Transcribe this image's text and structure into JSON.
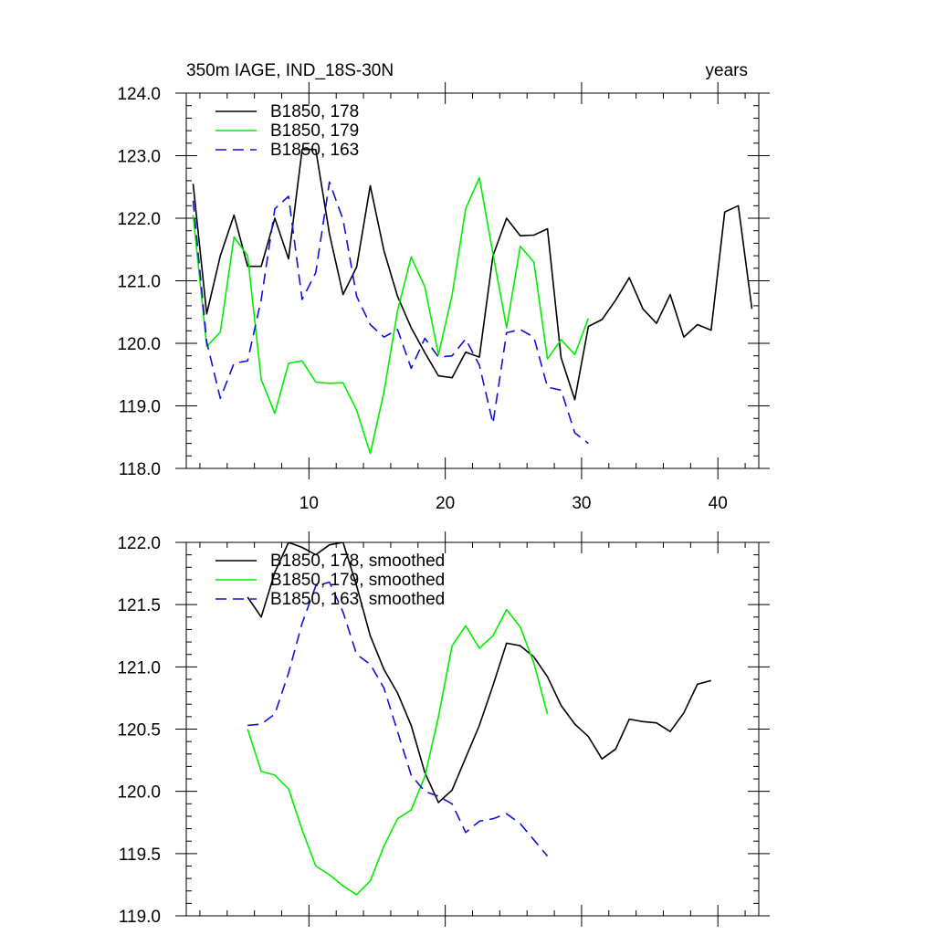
{
  "chart_data": [
    {
      "type": "line",
      "title": "350m IAGE, IND_18S-30N",
      "unit_label": "years",
      "xlim": [
        1,
        43
      ],
      "ylim": [
        118.0,
        124.0
      ],
      "x_ticks": [
        10,
        20,
        30,
        40
      ],
      "y_ticks": [
        118.0,
        119.0,
        120.0,
        121.0,
        122.0,
        123.0,
        124.0
      ],
      "y_tick_labels": [
        "118.0",
        "119.0",
        "120.0",
        "121.0",
        "122.0",
        "123.0",
        "124.0"
      ],
      "legend_position": "top-left",
      "series": [
        {
          "name": "B1850, 178",
          "color": "#000000",
          "dash": "solid",
          "x": [
            1.5,
            2.5,
            3.5,
            4.5,
            5.5,
            6.5,
            7.5,
            8.5,
            9.5,
            10.5,
            11.5,
            12.5,
            13.5,
            14.5,
            15.5,
            16.5,
            17.5,
            18.5,
            19.5,
            20.5,
            21.5,
            22.5,
            23.5,
            24.5,
            25.5,
            26.5,
            27.5,
            28.5,
            29.5,
            30.5,
            31.5,
            32.5,
            33.5,
            34.5,
            35.5,
            36.5,
            37.5,
            38.5,
            39.5,
            40.5,
            41.5,
            42.5
          ],
          "values": [
            122.55,
            120.47,
            121.4,
            122.05,
            121.23,
            121.23,
            122.0,
            121.35,
            123.1,
            123.1,
            121.75,
            120.78,
            121.22,
            122.52,
            121.48,
            120.75,
            120.25,
            119.85,
            119.48,
            119.45,
            119.86,
            119.78,
            121.4,
            122.0,
            121.72,
            121.73,
            121.83,
            119.77,
            119.1,
            120.27,
            120.38,
            120.69,
            121.05,
            120.55,
            120.32,
            120.78,
            120.1,
            120.3,
            120.21,
            122.1,
            122.2,
            120.55
          ]
        },
        {
          "name": "B1850, 179",
          "color": "#00ee00",
          "dash": "solid",
          "x": [
            1.5,
            2.5,
            3.5,
            4.5,
            5.5,
            6.5,
            7.5,
            8.5,
            9.5,
            10.5,
            11.5,
            12.5,
            13.5,
            14.5,
            15.5,
            16.5,
            17.5,
            18.5,
            19.5,
            20.5,
            21.5,
            22.5,
            23.5,
            24.5,
            25.5,
            26.5,
            27.5,
            28.5,
            29.5,
            30.5
          ],
          "values": [
            122.05,
            119.95,
            120.18,
            121.7,
            121.4,
            119.42,
            118.88,
            119.68,
            119.72,
            119.38,
            119.36,
            119.37,
            118.93,
            118.24,
            119.22,
            120.52,
            121.38,
            120.9,
            119.82,
            120.77,
            122.15,
            122.65,
            121.43,
            120.25,
            121.55,
            121.3,
            119.75,
            120.06,
            119.82,
            120.4
          ]
        },
        {
          "name": "B1850, 163",
          "color": "#1010d8",
          "dash": "dashed",
          "x": [
            1.5,
            2.5,
            3.5,
            4.5,
            5.5,
            6.5,
            7.5,
            8.5,
            9.5,
            10.5,
            11.5,
            12.5,
            13.5,
            14.5,
            15.5,
            16.5,
            17.5,
            18.5,
            19.5,
            20.5,
            21.5,
            22.5,
            23.5,
            24.5,
            25.5,
            26.5,
            27.5,
            28.5,
            29.5,
            30.5
          ],
          "values": [
            122.28,
            120.02,
            119.12,
            119.68,
            119.72,
            120.7,
            122.15,
            122.35,
            120.7,
            121.13,
            122.58,
            121.98,
            120.75,
            120.3,
            120.1,
            120.22,
            119.6,
            120.08,
            119.78,
            119.8,
            120.07,
            119.65,
            118.72,
            120.17,
            120.22,
            120.1,
            119.3,
            119.25,
            118.57,
            118.4
          ]
        }
      ]
    },
    {
      "type": "line",
      "xlim": [
        1,
        43
      ],
      "ylim": [
        119.0,
        122.0
      ],
      "x_ticks": [
        10,
        20,
        30,
        40
      ],
      "y_ticks": [
        119.0,
        119.5,
        120.0,
        120.5,
        121.0,
        121.5,
        122.0
      ],
      "y_tick_labels": [
        "119.0",
        "119.5",
        "120.0",
        "120.5",
        "121.0",
        "121.5",
        "122.0"
      ],
      "legend_position": "top-left",
      "series": [
        {
          "name": "B1850, 178, smoothed",
          "color": "#000000",
          "dash": "solid",
          "x": [
            5.5,
            6.5,
            7.5,
            8.5,
            9.5,
            10.5,
            11.5,
            12.5,
            13.5,
            14.5,
            15.5,
            16.5,
            17.5,
            18.5,
            19.5,
            20.5,
            21.5,
            22.5,
            23.5,
            24.5,
            25.5,
            26.5,
            27.5,
            28.5,
            29.5,
            30.5,
            31.5,
            32.5,
            33.5,
            34.5,
            35.5,
            36.5,
            37.5,
            38.5,
            39.5
          ],
          "values": [
            121.56,
            121.4,
            121.76,
            122.0,
            121.96,
            121.9,
            121.98,
            122.0,
            121.65,
            121.25,
            120.98,
            120.79,
            120.53,
            120.15,
            119.91,
            120.01,
            120.27,
            120.53,
            120.85,
            121.19,
            121.17,
            121.08,
            120.92,
            120.69,
            120.54,
            120.44,
            120.26,
            120.34,
            120.58,
            120.56,
            120.55,
            120.48,
            120.63,
            120.86,
            120.89
          ]
        },
        {
          "name": "B1850, 179, smoothed",
          "color": "#00ee00",
          "dash": "solid",
          "x": [
            5.5,
            6.5,
            7.5,
            8.5,
            9.5,
            10.5,
            11.5,
            12.5,
            13.5,
            14.5,
            15.5,
            16.5,
            17.5,
            18.5,
            19.5,
            20.5,
            21.5,
            22.5,
            23.5,
            24.5,
            25.5,
            26.5,
            27.5
          ],
          "values": [
            120.5,
            120.16,
            120.13,
            120.02,
            119.69,
            119.4,
            119.33,
            119.24,
            119.17,
            119.28,
            119.56,
            119.78,
            119.85,
            120.12,
            120.6,
            121.17,
            121.33,
            121.15,
            121.25,
            121.46,
            121.32,
            121.03,
            120.62
          ]
        },
        {
          "name": "B1850, 163, smoothed",
          "color": "#1010d8",
          "dash": "dashed",
          "x": [
            5.5,
            6.5,
            7.5,
            8.5,
            9.5,
            10.5,
            11.5,
            12.5,
            13.5,
            14.5,
            15.5,
            16.5,
            17.5,
            18.5,
            19.5,
            20.5,
            21.5,
            22.5,
            23.5,
            24.5,
            25.5,
            26.5,
            27.5
          ],
          "values": [
            120.53,
            120.54,
            120.62,
            120.95,
            121.35,
            121.65,
            121.68,
            121.44,
            121.1,
            121.02,
            120.83,
            120.48,
            120.13,
            120.0,
            119.96,
            119.9,
            119.67,
            119.76,
            119.78,
            119.82,
            119.74,
            119.61,
            119.48
          ]
        }
      ]
    }
  ]
}
